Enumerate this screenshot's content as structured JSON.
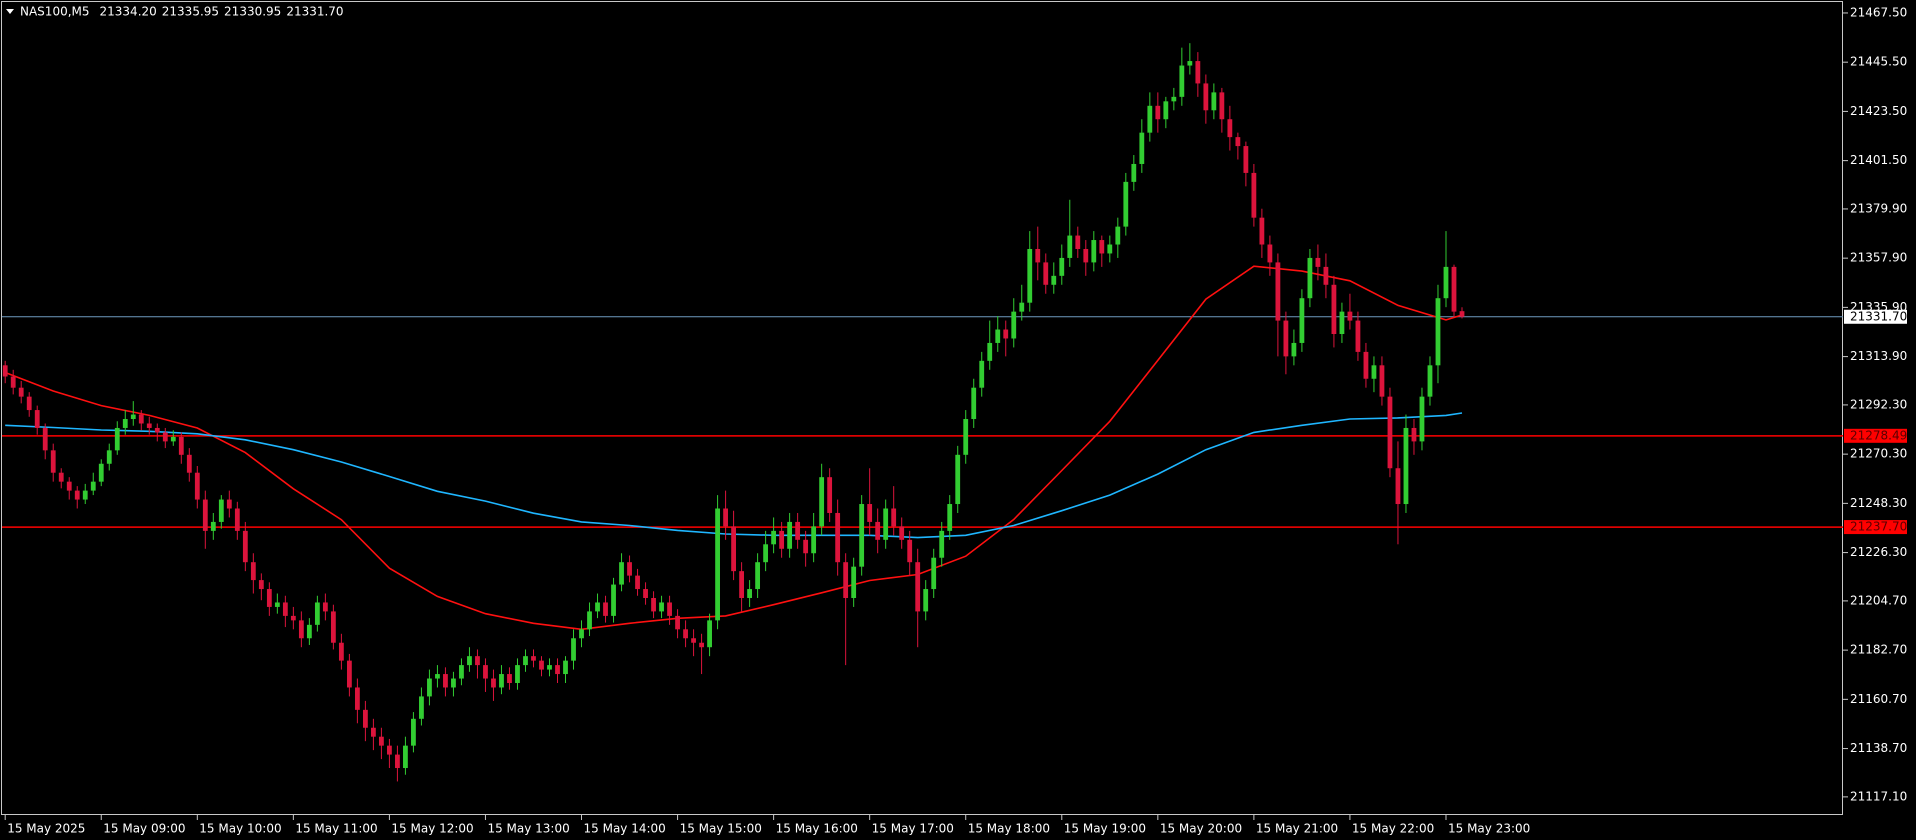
{
  "chart_data": {
    "type": "candlestick",
    "title": "NAS100,M5",
    "header_values": [
      {
        "value": 21334.2,
        "label": "21334.20"
      },
      {
        "value": 21335.95,
        "label": "21335.95"
      },
      {
        "value": 21330.95,
        "label": "21330.95"
      },
      {
        "value": 21331.7,
        "label": "21331.70"
      }
    ],
    "up_color": "#32cd32",
    "down_color": "#dc143c",
    "xlim": [
      -0.4,
      229.6
    ],
    "xticks": [
      {
        "value": 0,
        "label": "15 May 2025"
      },
      {
        "value": 12,
        "label": "15 May 09:00"
      },
      {
        "value": 24,
        "label": "15 May 10:00"
      },
      {
        "value": 36,
        "label": "15 May 11:00"
      },
      {
        "value": 48,
        "label": "15 May 12:00"
      },
      {
        "value": 60,
        "label": "15 May 13:00"
      },
      {
        "value": 72,
        "label": "15 May 14:00"
      },
      {
        "value": 84,
        "label": "15 May 15:00"
      },
      {
        "value": 96,
        "label": "15 May 16:00"
      },
      {
        "value": 108,
        "label": "15 May 17:00"
      },
      {
        "value": 120,
        "label": "15 May 18:00"
      },
      {
        "value": 132,
        "label": "15 May 19:00"
      },
      {
        "value": 144,
        "label": "15 May 20:00"
      },
      {
        "value": 156,
        "label": "15 May 21:00"
      },
      {
        "value": 168,
        "label": "15 May 22:00"
      },
      {
        "value": 180,
        "label": "15 May 23:00"
      }
    ],
    "ylim": [
      21109,
      21472.4
    ],
    "yticks": [
      {
        "value": 21467.5,
        "label": "21467.50"
      },
      {
        "value": 21445.5,
        "label": "21445.50"
      },
      {
        "value": 21423.5,
        "label": "21423.50"
      },
      {
        "value": 21401.5,
        "label": "21401.50"
      },
      {
        "value": 21379.9,
        "label": "21379.90"
      },
      {
        "value": 21357.9,
        "label": "21357.90"
      },
      {
        "value": 21335.9,
        "label": "21335.90"
      },
      {
        "value": 21313.9,
        "label": "21313.90"
      },
      {
        "value": 21292.3,
        "label": "21292.30"
      },
      {
        "value": 21270.3,
        "label": "21270.30"
      },
      {
        "value": 21248.3,
        "label": "21248.30"
      },
      {
        "value": 21226.3,
        "label": "21226.30"
      },
      {
        "value": 21204.7,
        "label": "21204.70"
      },
      {
        "value": 21182.7,
        "label": "21182.70"
      },
      {
        "value": 21160.7,
        "label": "21160.70"
      },
      {
        "value": 21138.7,
        "label": "21138.70"
      },
      {
        "value": 21117.1,
        "label": "21117.10"
      }
    ],
    "hlines": [
      {
        "value": 21331.7,
        "label": "21331.70",
        "color": "#6f9bbf",
        "tag_fill": "#ffffff",
        "tag_text": "#000000"
      },
      {
        "value": 21278.49,
        "label": "21278.49",
        "color": "#ff0000",
        "tag_fill": "#ff0000",
        "tag_text": "#5a0000"
      },
      {
        "value": 21237.7,
        "label": "21237.70",
        "color": "#ff0000",
        "tag_fill": "#ff0000",
        "tag_text": "#5a0000"
      }
    ],
    "open": [
      21310,
      21305,
      21300,
      21296,
      21290,
      21282,
      21272,
      21262,
      21258,
      21254,
      21250,
      21254,
      21258,
      21266,
      21272,
      21282,
      21286,
      21288,
      21284,
      21282,
      21280,
      21276,
      21278,
      21270,
      21262,
      21250,
      21236,
      21240,
      21250,
      21246,
      21236,
      21222,
      21214,
      21210,
      21202,
      21204,
      21198,
      21196,
      21188,
      21194,
      21204,
      21200,
      21186,
      21178,
      21166,
      21156,
      21148,
      21144,
      21140,
      21136,
      21130,
      21140,
      21152,
      21162,
      21170,
      21172,
      21166,
      21170,
      21176,
      21180,
      21176,
      21170,
      21166,
      21172,
      21168,
      21176,
      21180,
      21178,
      21174,
      21176,
      21172,
      21178,
      21188,
      21192,
      21200,
      21204,
      21198,
      21212,
      21222,
      21216,
      21210,
      21206,
      21200,
      21204,
      21198,
      21192,
      21188,
      21186,
      21184,
      21196,
      21246,
      21238,
      21218,
      21206,
      21210,
      21222,
      21230,
      21236,
      21228,
      21240,
      21232,
      21226,
      21238,
      21260,
      21244,
      21222,
      21206,
      21220,
      21248,
      21240,
      21232,
      21246,
      21238,
      21232,
      21222,
      21200,
      21210,
      21224,
      21236,
      21248,
      21270,
      21286,
      21300,
      21312,
      21320,
      21326,
      21322,
      21334,
      21338,
      21362,
      21356,
      21346,
      21350,
      21358,
      21368,
      21362,
      21356,
      21366,
      21360,
      21364,
      21372,
      21392,
      21400,
      21414,
      21426,
      21420,
      21428,
      21430,
      21444,
      21446,
      21436,
      21424,
      21432,
      21420,
      21412,
      21408,
      21396,
      21376,
      21364,
      21356,
      21330,
      21314,
      21320,
      21340,
      21358,
      21354,
      21346,
      21324,
      21334,
      21330,
      21316,
      21304,
      21310,
      21296,
      21264,
      21248,
      21282,
      21276,
      21296,
      21310,
      21340,
      21354,
      21334.2
    ],
    "high": [
      21312,
      21308,
      21303,
      21298,
      21292,
      21284,
      21275,
      21264,
      21260,
      21256,
      21257,
      21262,
      21268,
      21275,
      21285,
      21290,
      21294,
      21290,
      21287,
      21284,
      21282,
      21281,
      21280,
      21273,
      21265,
      21254,
      21244,
      21252,
      21254,
      21249,
      21240,
      21226,
      21217,
      21213,
      21208,
      21207,
      21202,
      21200,
      21197,
      21207,
      21208,
      21203,
      21190,
      21181,
      21170,
      21160,
      21152,
      21148,
      21143,
      21140,
      21144,
      21155,
      21166,
      21174,
      21176,
      21175,
      21173,
      21179,
      21184,
      21183,
      21179,
      21174,
      21176,
      21175,
      21179,
      21183,
      21183,
      21180,
      21179,
      21179,
      21180,
      21192,
      21196,
      21204,
      21208,
      21207,
      21215,
      21226,
      21225,
      21219,
      21213,
      21209,
      21207,
      21207,
      21201,
      21196,
      21192,
      21190,
      21199,
      21252,
      21254,
      21245,
      21222,
      21214,
      21226,
      21236,
      21242,
      21240,
      21244,
      21244,
      21236,
      21244,
      21266,
      21264,
      21250,
      21226,
      21224,
      21252,
      21264,
      21246,
      21250,
      21256,
      21242,
      21236,
      21228,
      21214,
      21228,
      21240,
      21252,
      21274,
      21290,
      21304,
      21316,
      21330,
      21332,
      21330,
      21340,
      21346,
      21370,
      21372,
      21360,
      21356,
      21364,
      21384,
      21372,
      21366,
      21370,
      21368,
      21368,
      21376,
      21396,
      21404,
      21420,
      21432,
      21432,
      21430,
      21434,
      21452,
      21454,
      21450,
      21440,
      21436,
      21434,
      21426,
      21414,
      21410,
      21400,
      21380,
      21368,
      21360,
      21334,
      21326,
      21344,
      21362,
      21364,
      21360,
      21350,
      21338,
      21342,
      21334,
      21320,
      21314,
      21314,
      21300,
      21276,
      21288,
      21286,
      21300,
      21314,
      21346,
      21370,
      21355,
      21335.95
    ],
    "low": [
      21302,
      21297,
      21293,
      21287,
      21279,
      21268,
      21258,
      21255,
      21250,
      21246,
      21248,
      21252,
      21256,
      21263,
      21270,
      21279,
      21283,
      21281,
      21279,
      21276,
      21273,
      21274,
      21266,
      21258,
      21246,
      21228,
      21232,
      21237,
      21242,
      21232,
      21218,
      21208,
      21205,
      21198,
      21199,
      21193,
      21192,
      21184,
      21185,
      21191,
      21196,
      21183,
      21174,
      21162,
      21150,
      21142,
      21138,
      21134,
      21130,
      21124,
      21127,
      21137,
      21149,
      21158,
      21166,
      21162,
      21162,
      21167,
      21173,
      21170,
      21164,
      21160,
      21163,
      21165,
      21165,
      21173,
      21175,
      21171,
      21171,
      21168,
      21168,
      21174,
      21184,
      21189,
      21197,
      21195,
      21195,
      21209,
      21213,
      21207,
      21203,
      21197,
      21197,
      21194,
      21188,
      21184,
      21180,
      21172,
      21180,
      21192,
      21232,
      21214,
      21200,
      21202,
      21206,
      21218,
      21226,
      21224,
      21224,
      21228,
      21220,
      21222,
      21234,
      21240,
      21216,
      21176,
      21202,
      21216,
      21234,
      21226,
      21228,
      21234,
      21228,
      21216,
      21184,
      21196,
      21206,
      21220,
      21232,
      21244,
      21266,
      21282,
      21296,
      21308,
      21316,
      21314,
      21318,
      21330,
      21334,
      21348,
      21342,
      21342,
      21346,
      21354,
      21358,
      21350,
      21352,
      21354,
      21356,
      21358,
      21368,
      21388,
      21396,
      21410,
      21414,
      21416,
      21424,
      21426,
      21440,
      21430,
      21418,
      21420,
      21414,
      21406,
      21402,
      21390,
      21372,
      21358,
      21350,
      21314,
      21306,
      21310,
      21316,
      21336,
      21348,
      21340,
      21318,
      21320,
      21326,
      21312,
      21300,
      21298,
      21292,
      21260,
      21230,
      21244,
      21270,
      21272,
      21292,
      21302,
      21336,
      21332,
      21330.95
    ],
    "close": [
      21305,
      21300,
      21296,
      21290,
      21282,
      21272,
      21262,
      21258,
      21254,
      21250,
      21254,
      21258,
      21266,
      21272,
      21282,
      21286,
      21288,
      21284,
      21282,
      21280,
      21276,
      21278,
      21270,
      21262,
      21250,
      21236,
      21240,
      21250,
      21246,
      21236,
      21222,
      21214,
      21210,
      21202,
      21204,
      21198,
      21196,
      21188,
      21194,
      21204,
      21200,
      21186,
      21178,
      21166,
      21156,
      21148,
      21144,
      21140,
      21136,
      21130,
      21140,
      21152,
      21162,
      21170,
      21172,
      21166,
      21170,
      21176,
      21180,
      21176,
      21170,
      21166,
      21172,
      21168,
      21176,
      21180,
      21178,
      21174,
      21176,
      21172,
      21178,
      21188,
      21192,
      21200,
      21204,
      21198,
      21212,
      21222,
      21216,
      21210,
      21206,
      21200,
      21204,
      21198,
      21192,
      21188,
      21186,
      21184,
      21196,
      21246,
      21238,
      21218,
      21206,
      21210,
      21222,
      21230,
      21236,
      21228,
      21240,
      21232,
      21226,
      21238,
      21260,
      21244,
      21222,
      21206,
      21220,
      21248,
      21240,
      21232,
      21246,
      21238,
      21232,
      21222,
      21200,
      21210,
      21224,
      21236,
      21248,
      21270,
      21286,
      21300,
      21312,
      21320,
      21326,
      21322,
      21334,
      21338,
      21362,
      21356,
      21346,
      21350,
      21358,
      21368,
      21362,
      21356,
      21366,
      21360,
      21364,
      21372,
      21392,
      21400,
      21414,
      21426,
      21420,
      21428,
      21430,
      21444,
      21446,
      21436,
      21424,
      21432,
      21420,
      21412,
      21408,
      21396,
      21376,
      21364,
      21356,
      21330,
      21314,
      21320,
      21340,
      21358,
      21354,
      21346,
      21324,
      21334,
      21330,
      21316,
      21304,
      21310,
      21296,
      21264,
      21248,
      21282,
      21276,
      21296,
      21310,
      21340,
      21354,
      21334,
      21331.7
    ],
    "lines": [
      {
        "color": "#ff1010",
        "x": [
          0,
          6,
          12,
          18,
          24,
          30,
          36,
          42,
          48,
          54,
          60,
          66,
          72,
          78,
          84,
          90,
          96,
          102,
          108,
          114,
          120,
          126,
          132,
          138,
          144,
          150,
          156,
          162,
          168,
          174,
          180,
          182
        ],
        "values": [
          21306.8,
          21298.5,
          21292,
          21287.6,
          21282,
          21271,
          21254.8,
          21241,
          21219.3,
          21206.7,
          21199,
          21194.7,
          21192,
          21194.7,
          21196.9,
          21198,
          21203,
          21208.3,
          21213.8,
          21216.5,
          21224.7,
          21241.1,
          21263,
          21285,
          21312.2,
          21339.6,
          21354.3,
          21352.1,
          21347.8,
          21336.8,
          21330.3,
          21332.5
        ]
      },
      {
        "color": "#1fb6ff",
        "x": [
          0,
          6,
          12,
          18,
          24,
          30,
          36,
          42,
          48,
          54,
          60,
          66,
          72,
          78,
          84,
          90,
          96,
          102,
          108,
          114,
          120,
          126,
          132,
          138,
          144,
          150,
          156,
          162,
          168,
          174,
          180,
          182
        ],
        "values": [
          21283.2,
          21282.2,
          21281.1,
          21280.5,
          21279.4,
          21276.7,
          21272.3,
          21266.8,
          21260.3,
          21253.7,
          21249.3,
          21243.9,
          21240,
          21238.4,
          21236.2,
          21234.6,
          21234,
          21234,
          21234,
          21233,
          21234,
          21238.4,
          21245,
          21252,
          21261.4,
          21272.3,
          21280,
          21283.2,
          21286,
          21286.5,
          21287.6,
          21288.7
        ]
      }
    ]
  }
}
